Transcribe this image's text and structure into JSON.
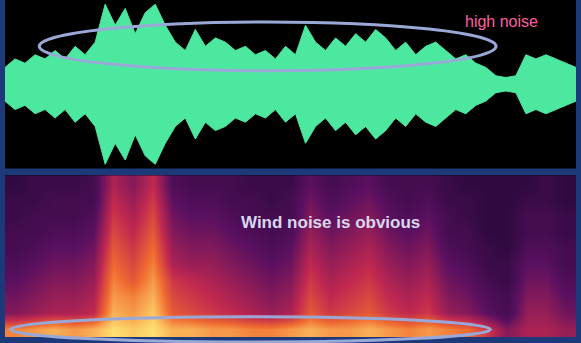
{
  "chart_data": [
    {
      "type": "area",
      "color": "#4de8a0",
      "values": [
        0.2,
        0.3,
        0.25,
        0.35,
        0.3,
        0.4,
        0.3,
        0.45,
        0.35,
        0.5,
        0.95,
        0.7,
        0.9,
        0.6,
        0.85,
        0.95,
        0.7,
        0.5,
        0.4,
        0.65,
        0.45,
        0.55,
        0.5,
        0.4,
        0.45,
        0.35,
        0.4,
        0.3,
        0.45,
        0.35,
        0.7,
        0.5,
        0.4,
        0.55,
        0.45,
        0.6,
        0.5,
        0.65,
        0.55,
        0.4,
        0.5,
        0.35,
        0.45,
        0.5,
        0.4,
        0.3,
        0.35,
        0.25,
        0.2,
        0.1,
        0.08,
        0.1,
        0.35,
        0.3,
        0.35,
        0.3,
        0.25,
        0.2
      ],
      "xlim": [
        0,
        57
      ],
      "ylim": [
        -1,
        1
      ],
      "tick_labels": false,
      "annotations": [
        "high noise"
      ]
    },
    {
      "type": "heatmap",
      "cells": [
        [
          0.8,
          0.85,
          0.9,
          0.85,
          0.9,
          1,
          0.95,
          1,
          0.9,
          0.9,
          0.85,
          0.85,
          0.8,
          0.8,
          0.85,
          0.9,
          0.85,
          0.85,
          0.9,
          0.85,
          0.8,
          0.85,
          0.8,
          0.75,
          0.6,
          0.4,
          0.5,
          0.5,
          0.45
        ],
        [
          0.4,
          0.45,
          0.5,
          0.5,
          0.55,
          0.9,
          0.85,
          0.95,
          0.7,
          0.65,
          0.6,
          0.55,
          0.5,
          0.45,
          0.5,
          0.7,
          0.6,
          0.65,
          0.7,
          0.6,
          0.55,
          0.6,
          0.45,
          0.4,
          0.3,
          0.2,
          0.45,
          0.45,
          0.35
        ],
        [
          0.35,
          0.4,
          0.45,
          0.45,
          0.5,
          0.85,
          0.8,
          0.9,
          0.65,
          0.6,
          0.55,
          0.5,
          0.45,
          0.4,
          0.45,
          0.65,
          0.55,
          0.6,
          0.65,
          0.55,
          0.5,
          0.55,
          0.4,
          0.35,
          0.25,
          0.2,
          0.4,
          0.4,
          0.3
        ],
        [
          0.3,
          0.35,
          0.4,
          0.4,
          0.45,
          0.8,
          0.7,
          0.85,
          0.6,
          0.55,
          0.5,
          0.45,
          0.4,
          0.35,
          0.4,
          0.6,
          0.5,
          0.55,
          0.6,
          0.5,
          0.45,
          0.5,
          0.35,
          0.3,
          0.2,
          0.15,
          0.35,
          0.35,
          0.25
        ],
        [
          0.25,
          0.3,
          0.35,
          0.35,
          0.4,
          0.75,
          0.65,
          0.8,
          0.5,
          0.45,
          0.45,
          0.4,
          0.35,
          0.3,
          0.35,
          0.55,
          0.45,
          0.5,
          0.55,
          0.45,
          0.4,
          0.45,
          0.3,
          0.25,
          0.15,
          0.15,
          0.3,
          0.3,
          0.2
        ],
        [
          0.2,
          0.25,
          0.3,
          0.3,
          0.35,
          0.7,
          0.6,
          0.75,
          0.45,
          0.4,
          0.4,
          0.35,
          0.3,
          0.25,
          0.3,
          0.5,
          0.4,
          0.45,
          0.5,
          0.4,
          0.35,
          0.4,
          0.25,
          0.2,
          0.15,
          0.1,
          0.25,
          0.25,
          0.2
        ],
        [
          0.2,
          0.2,
          0.25,
          0.25,
          0.3,
          0.65,
          0.55,
          0.7,
          0.4,
          0.35,
          0.35,
          0.3,
          0.25,
          0.2,
          0.25,
          0.45,
          0.35,
          0.4,
          0.45,
          0.35,
          0.3,
          0.35,
          0.2,
          0.2,
          0.1,
          0.1,
          0.2,
          0.2,
          0.15
        ],
        [
          0.15,
          0.2,
          0.2,
          0.2,
          0.25,
          0.6,
          0.5,
          0.65,
          0.35,
          0.3,
          0.3,
          0.25,
          0.2,
          0.2,
          0.2,
          0.4,
          0.3,
          0.35,
          0.4,
          0.3,
          0.25,
          0.3,
          0.2,
          0.15,
          0.1,
          0.1,
          0.2,
          0.2,
          0.15
        ],
        [
          0.15,
          0.15,
          0.2,
          0.2,
          0.2,
          0.55,
          0.45,
          0.6,
          0.3,
          0.25,
          0.25,
          0.2,
          0.2,
          0.15,
          0.2,
          0.35,
          0.25,
          0.3,
          0.35,
          0.25,
          0.2,
          0.25,
          0.15,
          0.15,
          0.1,
          0.1,
          0.15,
          0.15,
          0.1
        ],
        [
          0.1,
          0.15,
          0.15,
          0.15,
          0.2,
          0.5,
          0.4,
          0.55,
          0.25,
          0.2,
          0.2,
          0.2,
          0.15,
          0.15,
          0.15,
          0.3,
          0.2,
          0.25,
          0.3,
          0.2,
          0.2,
          0.2,
          0.15,
          0.1,
          0.1,
          0.1,
          0.1,
          0.15,
          0.1
        ]
      ],
      "zlim": [
        0,
        1
      ],
      "xlim": [
        -0.5,
        28.5
      ],
      "ylim": [
        -0.5,
        9.5
      ],
      "tick_labels": false,
      "annotations": [
        "Wind noise is obvious"
      ]
    }
  ]
}
